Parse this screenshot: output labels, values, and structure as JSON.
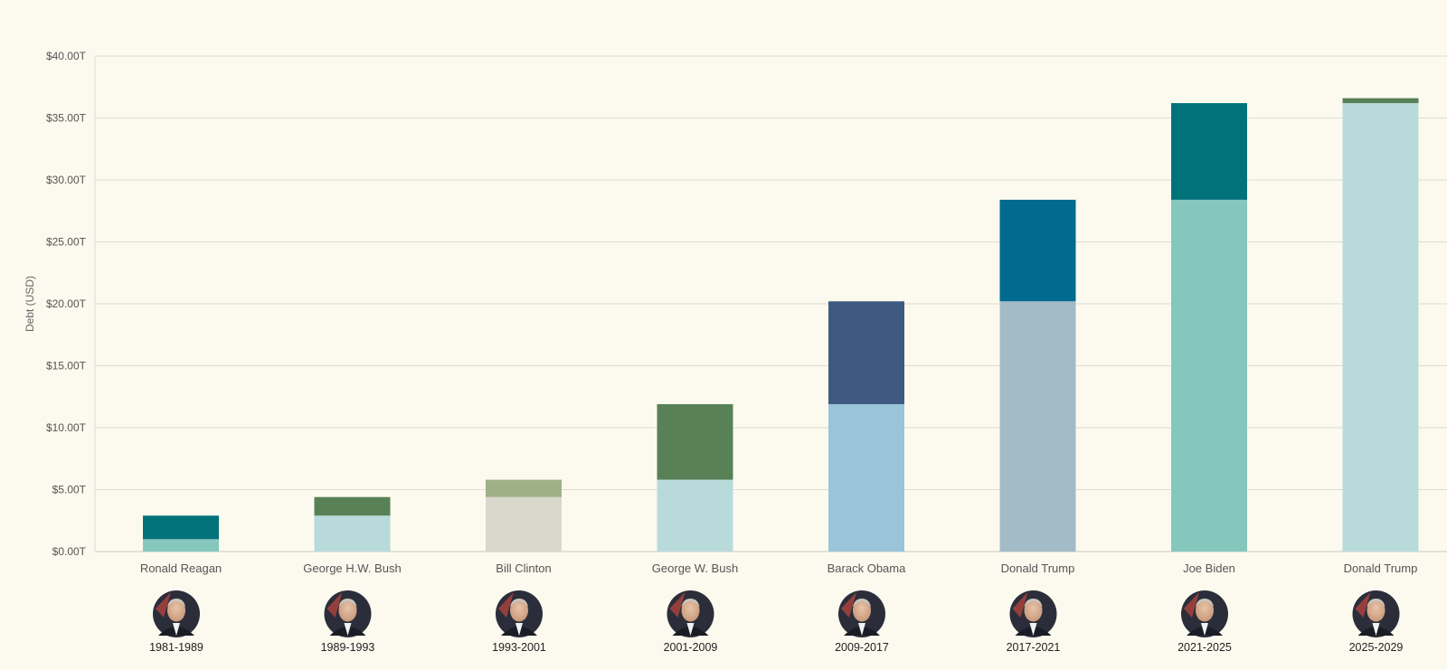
{
  "chart_data": {
    "type": "bar",
    "stacked": true,
    "ylabel": "Debt (USD)",
    "ylim": [
      0,
      40
    ],
    "yticks": [
      {
        "value": 0,
        "label": "$0.00T"
      },
      {
        "value": 5,
        "label": "$5.00T"
      },
      {
        "value": 10,
        "label": "$10.00T"
      },
      {
        "value": 15,
        "label": "$15.00T"
      },
      {
        "value": 20,
        "label": "$20.00T"
      },
      {
        "value": 25,
        "label": "$25.00T"
      },
      {
        "value": 30,
        "label": "$30.00T"
      },
      {
        "value": 35,
        "label": "$35.00T"
      },
      {
        "value": 40,
        "label": "$40.00T"
      }
    ],
    "grid": true,
    "bars": [
      {
        "president": "Ronald Reagan",
        "term": "1981-1989",
        "start_debt": 1.0,
        "end_debt": 2.9,
        "base_color": "#85c7bc",
        "top_color": "#02727a"
      },
      {
        "president": "George H.W. Bush",
        "term": "1989-1993",
        "start_debt": 2.9,
        "end_debt": 4.4,
        "base_color": "#b8dadb",
        "top_color": "#598157"
      },
      {
        "president": "Bill Clinton",
        "term": "1993-2001",
        "start_debt": 4.4,
        "end_debt": 5.8,
        "base_color": "#d9d8cd",
        "top_color": "#a0b086"
      },
      {
        "president": "George W. Bush",
        "term": "2001-2009",
        "start_debt": 5.8,
        "end_debt": 11.9,
        "base_color": "#b8dadb",
        "top_color": "#598157"
      },
      {
        "president": "Barack Obama",
        "term": "2009-2017",
        "start_debt": 11.9,
        "end_debt": 20.2,
        "base_color": "#9ac4da",
        "top_color": "#3e5a80"
      },
      {
        "president": "Donald Trump",
        "term": "2017-2021",
        "start_debt": 20.2,
        "end_debt": 28.4,
        "base_color": "#a3bbc7",
        "top_color": "#026a8e"
      },
      {
        "president": "Joe Biden",
        "term": "2021-2025",
        "start_debt": 28.4,
        "end_debt": 36.2,
        "base_color": "#85c7bc",
        "top_color": "#02727a"
      },
      {
        "president": "Donald Trump",
        "term": "2025-2029",
        "start_debt": 36.2,
        "end_debt": 36.6,
        "base_color": "#b8dadb",
        "top_color": "#598157"
      }
    ]
  },
  "avatar_icon": "president-portrait-icon"
}
